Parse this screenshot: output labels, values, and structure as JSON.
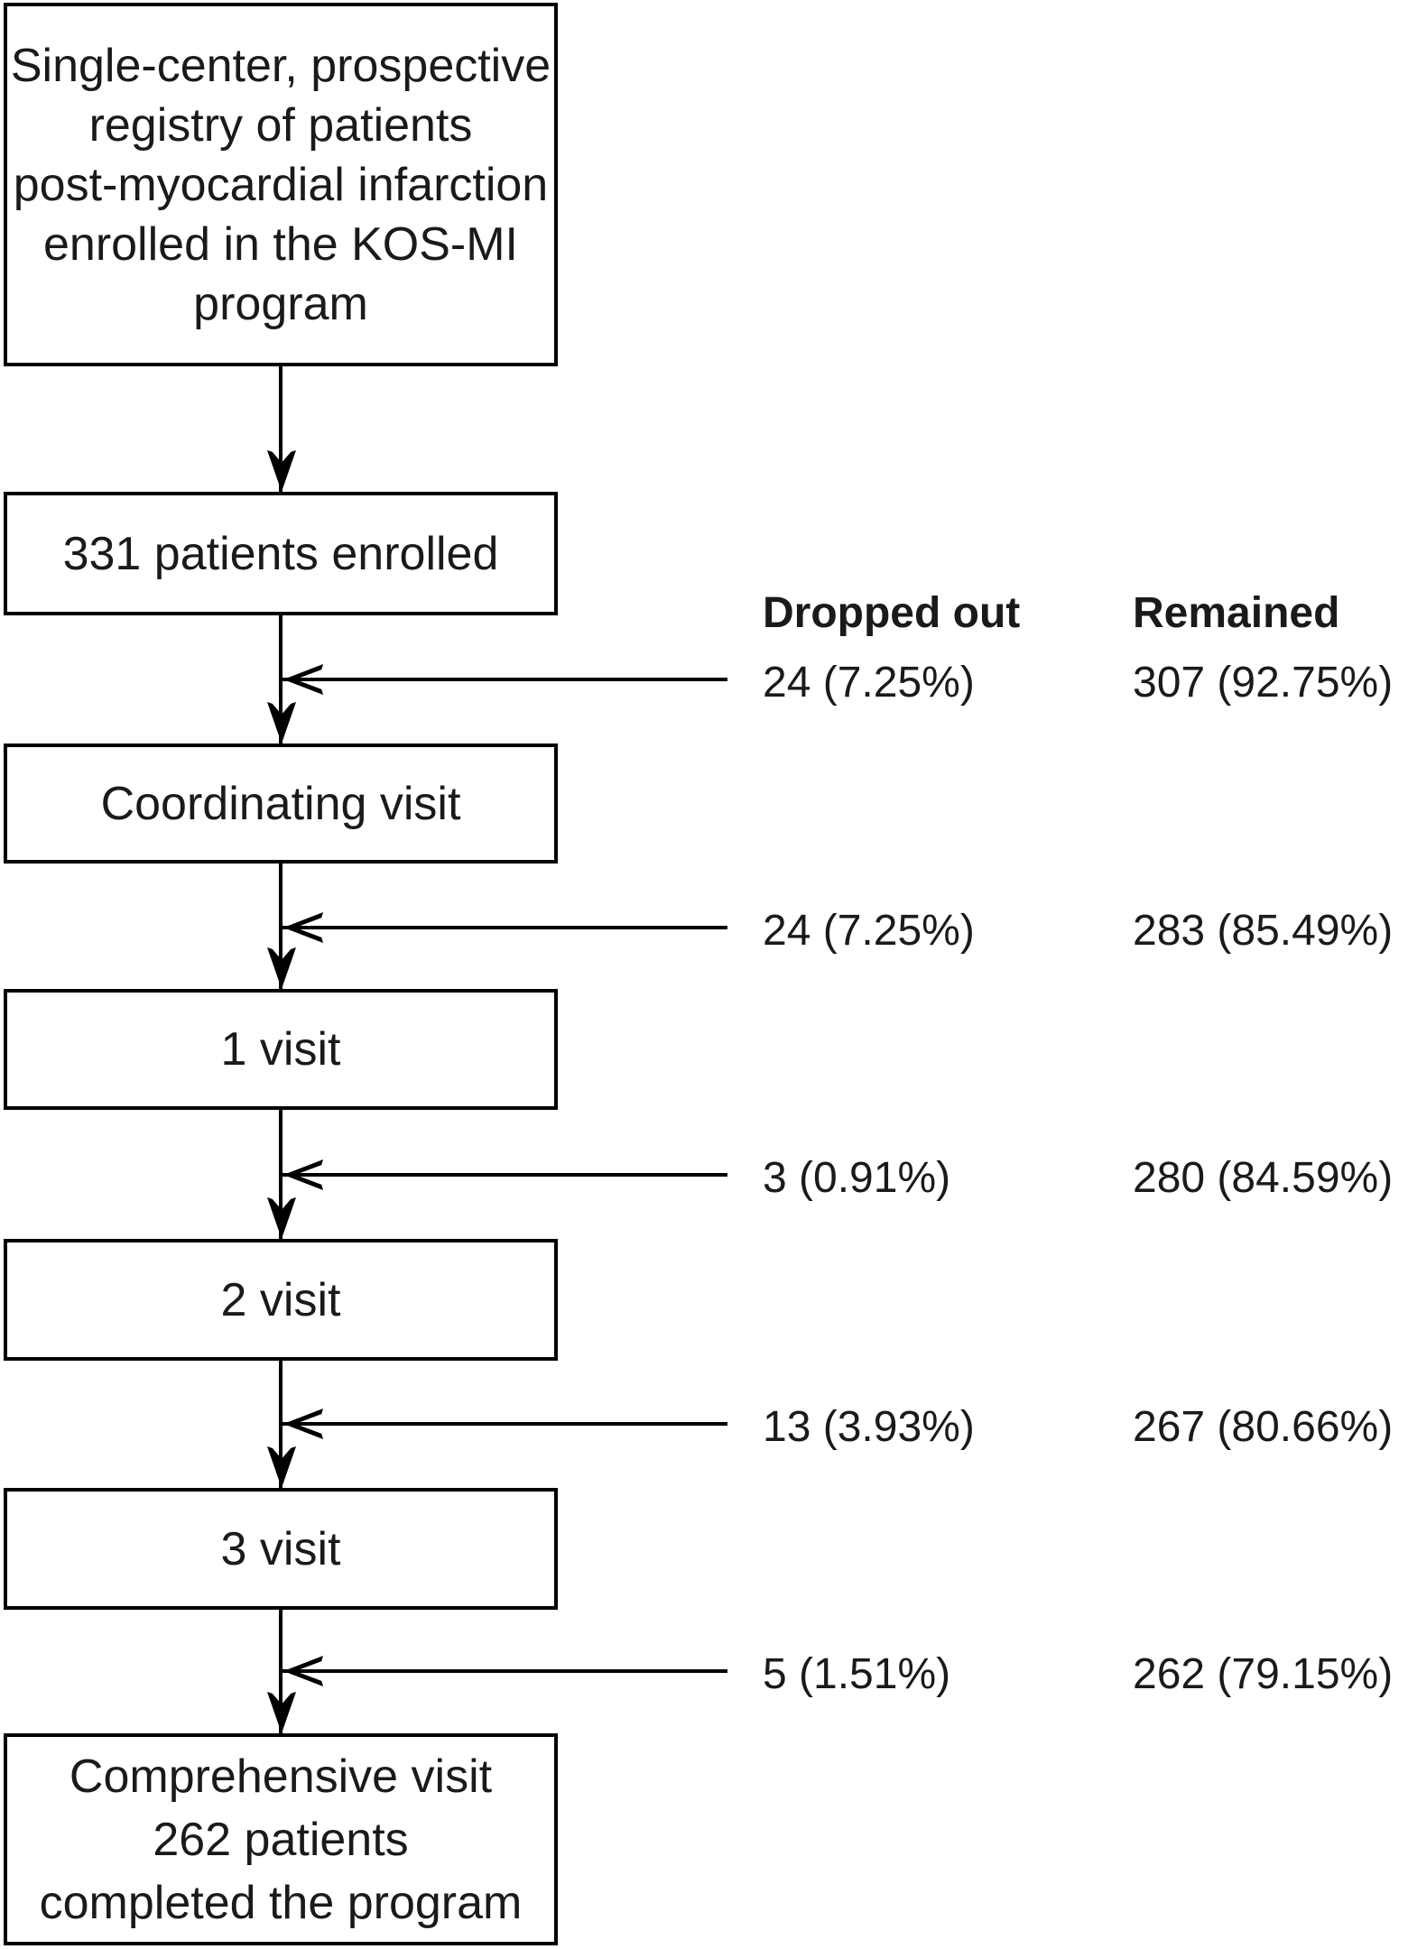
{
  "flowchart": {
    "boxes": {
      "registry": {
        "lines": [
          "Single-center, prospective",
          "registry of patients",
          "post-myocardial infarction",
          "enrolled in the KOS-MI",
          "program"
        ]
      },
      "enrolled": {
        "label": "331 patients enrolled"
      },
      "coordinating": {
        "label": "Coordinating visit"
      },
      "visit1": {
        "label": "1 visit"
      },
      "visit2": {
        "label": "2 visit"
      },
      "visit3": {
        "label": "3 visit"
      },
      "comprehensive": {
        "lines": [
          "Comprehensive visit",
          "262 patients",
          "completed the program"
        ]
      }
    },
    "attrition_table": {
      "headers": {
        "dropped": "Dropped out",
        "remained": "Remained"
      },
      "rows": [
        {
          "dropped": "24 (7.25%)",
          "remained": "307 (92.75%)"
        },
        {
          "dropped": "24 (7.25%)",
          "remained": "283 (85.49%)"
        },
        {
          "dropped": "3 (0.91%)",
          "remained": "280 (84.59%)"
        },
        {
          "dropped": "13 (3.93%)",
          "remained": "267 (80.66%)"
        },
        {
          "dropped": "5 (1.51%)",
          "remained": "262 (79.15%)"
        }
      ]
    },
    "colors": {
      "line": "#000000",
      "box_fill": "#ffffff",
      "text": "#1a1a1a"
    }
  }
}
